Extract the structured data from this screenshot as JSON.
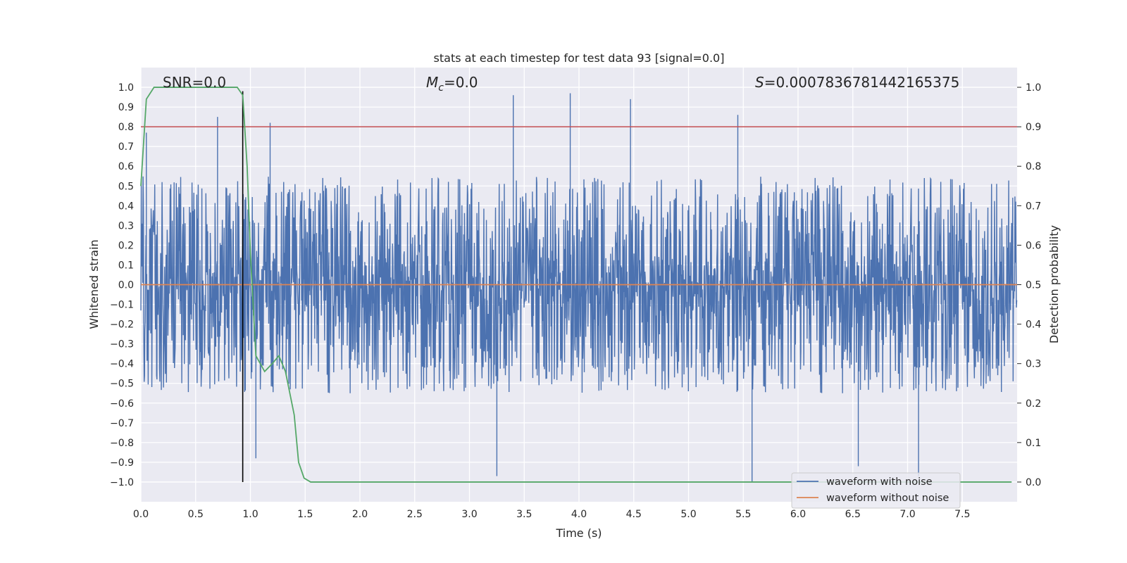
{
  "chart_data": {
    "type": "line",
    "title": "stats at each timestep for test data 93 [signal=0.0]",
    "xlabel": "Time (s)",
    "ylabel": "Whitened strain",
    "y2label": "Detection probability",
    "xlim": [
      0.0,
      8.0
    ],
    "ylim": [
      -1.1,
      1.1
    ],
    "y2lim": [
      -0.05,
      1.05
    ],
    "xticks": [
      "0.0",
      "0.5",
      "1.0",
      "1.5",
      "2.0",
      "2.5",
      "3.0",
      "3.5",
      "4.0",
      "4.5",
      "5.0",
      "5.5",
      "6.0",
      "6.5",
      "7.0",
      "7.5"
    ],
    "yticks": [
      "1.0",
      "0.9",
      "0.8",
      "0.7",
      "0.6",
      "0.5",
      "0.4",
      "0.3",
      "0.2",
      "0.1",
      "0.0",
      "−0.1",
      "−0.2",
      "−0.3",
      "−0.4",
      "−0.5",
      "−0.6",
      "−0.7",
      "−0.8",
      "−0.9",
      "−1.0"
    ],
    "y2ticks": [
      "1.0",
      "0.9",
      "0.8",
      "0.7",
      "0.6",
      "0.5",
      "0.4",
      "0.3",
      "0.2",
      "0.1",
      "0.0"
    ],
    "grid": true,
    "legend_position": "lower-right",
    "annotations": {
      "snr_text": "SNR=0.0",
      "mc_symbol": "M",
      "mc_subscript": "c",
      "mc_value": "=0.0",
      "s_symbol": "S",
      "s_value": "=0.0007836781442165375"
    },
    "series": [
      {
        "name": "waveform with noise",
        "color": "#4c72b0",
        "amplitude_range": [
          -1.0,
          0.97
        ],
        "typical_envelope": [
          -0.4,
          0.45
        ],
        "peaks": [
          {
            "x": 0.05,
            "y": 0.77
          },
          {
            "x": 0.7,
            "y": 0.85
          },
          {
            "x": 1.18,
            "y": 0.82
          },
          {
            "x": 3.4,
            "y": 0.96
          },
          {
            "x": 3.92,
            "y": 0.97
          },
          {
            "x": 4.47,
            "y": 0.94
          },
          {
            "x": 5.45,
            "y": 0.86
          },
          {
            "x": 5.58,
            "y": -1.0
          },
          {
            "x": 7.1,
            "y": -0.97
          },
          {
            "x": 3.25,
            "y": -0.97
          },
          {
            "x": 1.05,
            "y": -0.88
          },
          {
            "x": 6.55,
            "y": -0.92
          }
        ]
      },
      {
        "name": "waveform without noise",
        "color": "#dd8452",
        "x": [
          0.0,
          8.0
        ],
        "y": [
          0.0,
          0.0
        ]
      },
      {
        "name": "",
        "axis": "right",
        "color": "#55a868",
        "x": [
          0.0,
          0.05,
          0.12,
          0.25,
          0.5,
          0.75,
          0.88,
          0.93,
          0.97,
          1.0,
          1.05,
          1.13,
          1.2,
          1.26,
          1.32,
          1.4,
          1.44,
          1.49,
          1.55,
          2.0,
          4.0,
          6.0,
          7.95
        ],
        "y": [
          0.75,
          0.97,
          1.0,
          1.0,
          1.0,
          1.0,
          1.0,
          0.98,
          0.8,
          0.58,
          0.32,
          0.28,
          0.3,
          0.32,
          0.28,
          0.17,
          0.05,
          0.01,
          0.0,
          0.0,
          0.0,
          0.0,
          0.0
        ]
      }
    ],
    "reference_lines": [
      {
        "axis": "right",
        "y": 0.9,
        "color": "#c44e52"
      },
      {
        "axis": "x",
        "x": 0.93,
        "y_range": [
          -1.0,
          0.98
        ],
        "color": "#000000"
      }
    ]
  }
}
